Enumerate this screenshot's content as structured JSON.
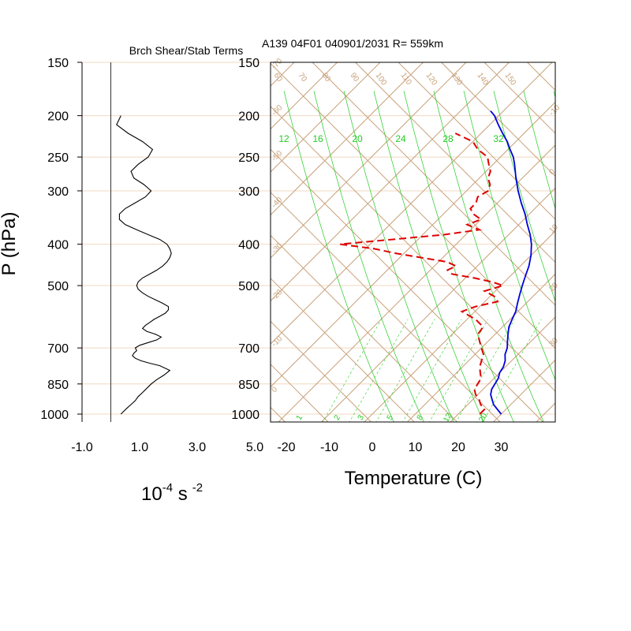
{
  "title_left": "Brch Shear/Stab Terms",
  "title_right": "A139 04F01 040901/2031 R= 559km",
  "ylabel": "P (hPa)",
  "left_xlabel_base": "10",
  "left_xlabel_exp1": "-4",
  "left_xlabel_unit": "s",
  "left_xlabel_exp2": "-2",
  "right_xlabel": "Temperature (C)",
  "colors": {
    "isobar": "#f0d8c0",
    "tan": "#c8a27a",
    "green": "#22cc22",
    "temperature": "#0000dd",
    "dewpoint": "#e00000",
    "profile": "#000000"
  },
  "chart_data": [
    {
      "type": "line",
      "title": "Brch Shear/Stab Terms",
      "xlabel": "10^-4 s^-2",
      "ylabel": "P (hPa)",
      "y_scale": "log-pressure",
      "xlim": [
        -1.0,
        5.0
      ],
      "ylim": [
        1000,
        150
      ],
      "x_ticks": [
        "-1.0",
        "1.0",
        "3.0",
        "5.0"
      ],
      "pressure_ticks": [
        1000,
        850,
        700,
        500,
        400,
        300,
        250,
        200,
        150
      ],
      "zero_line": 0,
      "series": [
        {
          "pressure": [
            1000,
            985,
            970,
            950,
            930,
            910,
            890,
            870,
            850,
            830,
            810,
            790,
            770,
            760,
            750,
            740,
            730,
            720,
            710,
            700,
            690,
            680,
            670,
            660,
            650,
            640,
            630,
            620,
            610,
            600,
            590,
            580,
            570,
            560,
            550,
            540,
            530,
            520,
            510,
            500,
            490,
            480,
            470,
            460,
            450,
            440,
            430,
            420,
            410,
            400,
            390,
            380,
            370,
            360,
            350,
            340,
            330,
            320,
            310,
            300,
            290,
            280,
            270,
            260,
            250,
            240,
            230,
            220,
            210,
            200
          ],
          "x": [
            0.35,
            0.45,
            0.55,
            0.7,
            0.85,
            0.95,
            1.1,
            1.25,
            1.4,
            1.6,
            1.85,
            2.05,
            1.7,
            1.35,
            1.05,
            0.85,
            0.75,
            0.8,
            0.9,
            0.85,
            1.0,
            1.3,
            1.6,
            1.75,
            1.55,
            1.25,
            1.1,
            1.2,
            1.35,
            1.5,
            1.7,
            1.9,
            2.0,
            2.0,
            1.8,
            1.55,
            1.3,
            1.1,
            0.95,
            0.9,
            0.95,
            1.1,
            1.35,
            1.6,
            1.8,
            1.95,
            2.05,
            2.1,
            2.05,
            1.95,
            1.7,
            1.3,
            0.9,
            0.5,
            0.3,
            0.3,
            0.5,
            0.85,
            1.2,
            1.4,
            1.15,
            0.8,
            0.7,
            0.95,
            1.3,
            1.45,
            1.1,
            0.6,
            0.2,
            0.35
          ]
        }
      ]
    },
    {
      "type": "line",
      "title": "A139 04F01 040901/2031 R= 559km",
      "xlabel": "Temperature (C)",
      "ylabel": "P (hPa)",
      "y_scale": "log-pressure",
      "xlim": [
        -23,
        30
      ],
      "ylim": [
        1000,
        150
      ],
      "x_ticks": [
        "-20",
        "-10",
        "0",
        "10",
        "20",
        "30"
      ],
      "pressure_ticks": [
        1000,
        850,
        700,
        500,
        400,
        300,
        250,
        200,
        150
      ],
      "isotherm_labels": [
        "-70",
        "-60",
        "-50",
        "-40",
        "-30",
        "-20",
        "-10",
        "0",
        "10",
        "20"
      ],
      "dry_adiabat_labels": [
        "60",
        "70",
        "80",
        "90",
        "100",
        "110",
        "120",
        "130",
        "140",
        "150"
      ],
      "mixing_ratio_labels_top": [
        "12",
        "16",
        "20",
        "24",
        "28",
        "32"
      ],
      "mixing_ratio_labels_bottom": [
        "1",
        "2",
        "3",
        "5",
        "8",
        "12",
        "20"
      ],
      "series": [
        {
          "name": "Temperature",
          "pressure": [
            1000,
            975,
            950,
            925,
            900,
            875,
            850,
            825,
            800,
            775,
            750,
            725,
            700,
            675,
            650,
            625,
            600,
            575,
            550,
            525,
            500,
            475,
            450,
            425,
            400,
            380,
            360,
            340,
            320,
            300,
            280,
            260,
            250,
            240,
            230,
            220,
            210,
            200,
            195
          ],
          "temp": [
            30.0,
            28.0,
            26.0,
            24.5,
            23.0,
            22.0,
            21.5,
            21.0,
            20.0,
            19.5,
            18.5,
            17.0,
            16.0,
            14.5,
            13.0,
            11.5,
            10.5,
            9.5,
            8.0,
            6.5,
            5.0,
            3.5,
            2.0,
            0.0,
            -2.5,
            -5.0,
            -8.0,
            -11.0,
            -14.5,
            -18.0,
            -21.5,
            -25.0,
            -27.0,
            -29.5,
            -32.0,
            -35.0,
            -38.0,
            -41.0,
            -43.0
          ]
        },
        {
          "name": "Dewpoint",
          "pressure": [
            1000,
            975,
            950,
            925,
            900,
            875,
            850,
            825,
            800,
            775,
            750,
            725,
            700,
            675,
            650,
            625,
            600,
            575,
            560,
            545,
            530,
            515,
            500,
            490,
            480,
            470,
            460,
            450,
            440,
            430,
            420,
            410,
            400,
            390,
            380,
            370,
            360,
            350,
            340,
            330,
            320,
            310,
            300,
            290,
            280,
            270,
            260,
            250,
            240,
            230,
            220
          ],
          "temp": [
            25.0,
            25.0,
            23.0,
            21.5,
            19.5,
            18.0,
            17.5,
            17.0,
            15.5,
            14.0,
            13.0,
            12.0,
            10.0,
            8.0,
            6.0,
            5.5,
            2.0,
            -3.0,
            -1.0,
            3.0,
            1.0,
            -2.5,
            0.5,
            -3.0,
            -8.0,
            -14.0,
            -16.0,
            -15.0,
            -18.0,
            -25.0,
            -32.0,
            -38.0,
            -47.0,
            -36.0,
            -25.0,
            -18.0,
            -22.0,
            -20.0,
            -23.0,
            -25.0,
            -25.0,
            -26.0,
            -25.0,
            -26.0,
            -28.0,
            -29.0,
            -31.0,
            -33.0,
            -37.0,
            -40.0,
            -46.0
          ]
        }
      ]
    }
  ]
}
